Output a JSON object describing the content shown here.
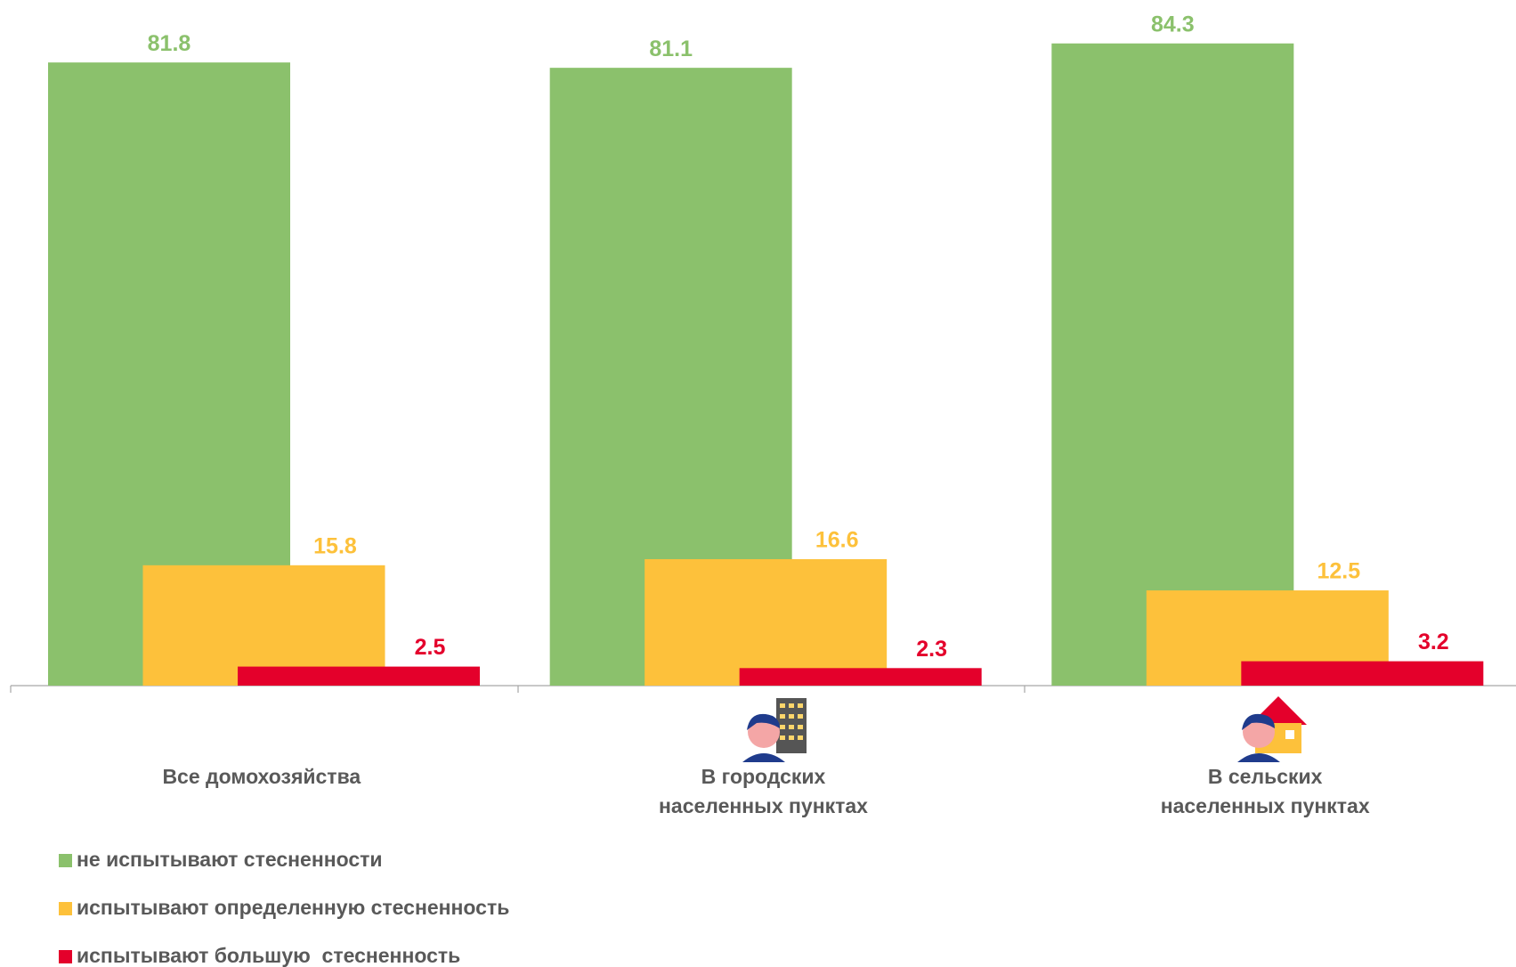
{
  "chart_data": {
    "type": "bar",
    "categories": [
      "Все домохозяйства",
      "В городских\nнаселенных пунктах",
      "В сельских\nнаселенных пунктах"
    ],
    "series": [
      {
        "name": "не испытывают стесненности",
        "color": "#8bc16c",
        "values": [
          81.8,
          81.1,
          84.3
        ]
      },
      {
        "name": "испытывают определенную стесненность",
        "color": "#fdc13b",
        "values": [
          15.8,
          16.6,
          12.5
        ]
      },
      {
        "name": "испытывают большую  стесненность",
        "color": "#e4002b",
        "values": [
          2.5,
          2.3,
          3.2
        ]
      }
    ],
    "ylim": [
      0,
      90
    ],
    "grid": false,
    "legend": "bottom-left"
  }
}
